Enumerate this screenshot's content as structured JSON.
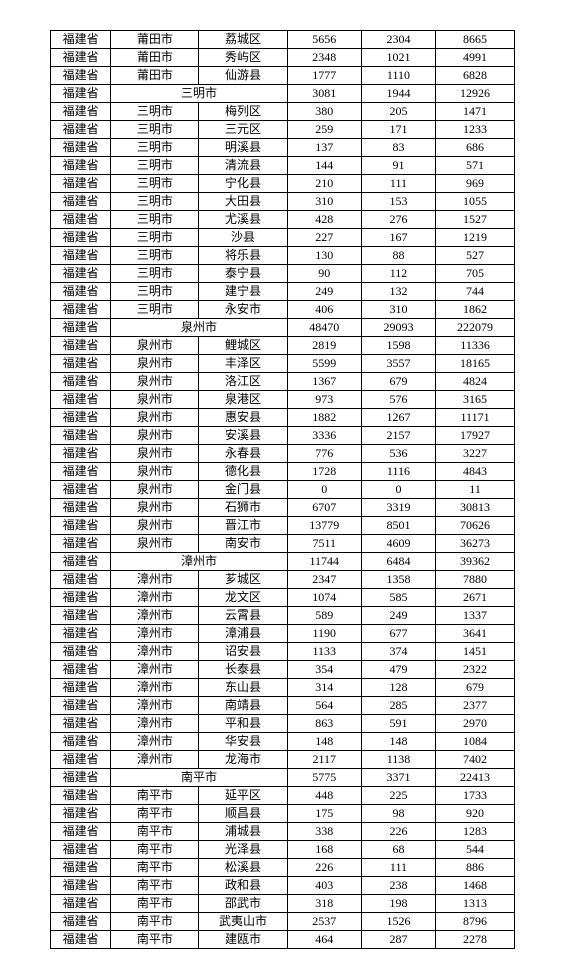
{
  "rows": [
    {
      "prov": "福建省",
      "city": "莆田市",
      "dist": "荔城区",
      "a": "5656",
      "b": "2304",
      "c": "8665"
    },
    {
      "prov": "福建省",
      "city": "莆田市",
      "dist": "秀屿区",
      "a": "2348",
      "b": "1021",
      "c": "4991"
    },
    {
      "prov": "福建省",
      "city": "莆田市",
      "dist": "仙游县",
      "a": "1777",
      "b": "1110",
      "c": "6828"
    },
    {
      "prov": "福建省",
      "subtotal": "三明市",
      "a": "3081",
      "b": "1944",
      "c": "12926"
    },
    {
      "prov": "福建省",
      "city": "三明市",
      "dist": "梅列区",
      "a": "380",
      "b": "205",
      "c": "1471"
    },
    {
      "prov": "福建省",
      "city": "三明市",
      "dist": "三元区",
      "a": "259",
      "b": "171",
      "c": "1233"
    },
    {
      "prov": "福建省",
      "city": "三明市",
      "dist": "明溪县",
      "a": "137",
      "b": "83",
      "c": "686"
    },
    {
      "prov": "福建省",
      "city": "三明市",
      "dist": "清流县",
      "a": "144",
      "b": "91",
      "c": "571"
    },
    {
      "prov": "福建省",
      "city": "三明市",
      "dist": "宁化县",
      "a": "210",
      "b": "111",
      "c": "969"
    },
    {
      "prov": "福建省",
      "city": "三明市",
      "dist": "大田县",
      "a": "310",
      "b": "153",
      "c": "1055"
    },
    {
      "prov": "福建省",
      "city": "三明市",
      "dist": "尤溪县",
      "a": "428",
      "b": "276",
      "c": "1527"
    },
    {
      "prov": "福建省",
      "city": "三明市",
      "dist": "沙县",
      "a": "227",
      "b": "167",
      "c": "1219"
    },
    {
      "prov": "福建省",
      "city": "三明市",
      "dist": "将乐县",
      "a": "130",
      "b": "88",
      "c": "527"
    },
    {
      "prov": "福建省",
      "city": "三明市",
      "dist": "泰宁县",
      "a": "90",
      "b": "112",
      "c": "705"
    },
    {
      "prov": "福建省",
      "city": "三明市",
      "dist": "建宁县",
      "a": "249",
      "b": "132",
      "c": "744"
    },
    {
      "prov": "福建省",
      "city": "三明市",
      "dist": "永安市",
      "a": "406",
      "b": "310",
      "c": "1862"
    },
    {
      "prov": "福建省",
      "subtotal": "泉州市",
      "a": "48470",
      "b": "29093",
      "c": "222079"
    },
    {
      "prov": "福建省",
      "city": "泉州市",
      "dist": "鲤城区",
      "a": "2819",
      "b": "1598",
      "c": "11336"
    },
    {
      "prov": "福建省",
      "city": "泉州市",
      "dist": "丰泽区",
      "a": "5599",
      "b": "3557",
      "c": "18165"
    },
    {
      "prov": "福建省",
      "city": "泉州市",
      "dist": "洛江区",
      "a": "1367",
      "b": "679",
      "c": "4824"
    },
    {
      "prov": "福建省",
      "city": "泉州市",
      "dist": "泉港区",
      "a": "973",
      "b": "576",
      "c": "3165"
    },
    {
      "prov": "福建省",
      "city": "泉州市",
      "dist": "惠安县",
      "a": "1882",
      "b": "1267",
      "c": "11171"
    },
    {
      "prov": "福建省",
      "city": "泉州市",
      "dist": "安溪县",
      "a": "3336",
      "b": "2157",
      "c": "17927"
    },
    {
      "prov": "福建省",
      "city": "泉州市",
      "dist": "永春县",
      "a": "776",
      "b": "536",
      "c": "3227"
    },
    {
      "prov": "福建省",
      "city": "泉州市",
      "dist": "德化县",
      "a": "1728",
      "b": "1116",
      "c": "4843"
    },
    {
      "prov": "福建省",
      "city": "泉州市",
      "dist": "金门县",
      "a": "0",
      "b": "0",
      "c": "11"
    },
    {
      "prov": "福建省",
      "city": "泉州市",
      "dist": "石狮市",
      "a": "6707",
      "b": "3319",
      "c": "30813"
    },
    {
      "prov": "福建省",
      "city": "泉州市",
      "dist": "晋江市",
      "a": "13779",
      "b": "8501",
      "c": "70626"
    },
    {
      "prov": "福建省",
      "city": "泉州市",
      "dist": "南安市",
      "a": "7511",
      "b": "4609",
      "c": "36273"
    },
    {
      "prov": "福建省",
      "subtotal": "漳州市",
      "a": "11744",
      "b": "6484",
      "c": "39362"
    },
    {
      "prov": "福建省",
      "city": "漳州市",
      "dist": "芗城区",
      "a": "2347",
      "b": "1358",
      "c": "7880"
    },
    {
      "prov": "福建省",
      "city": "漳州市",
      "dist": "龙文区",
      "a": "1074",
      "b": "585",
      "c": "2671"
    },
    {
      "prov": "福建省",
      "city": "漳州市",
      "dist": "云霄县",
      "a": "589",
      "b": "249",
      "c": "1337"
    },
    {
      "prov": "福建省",
      "city": "漳州市",
      "dist": "漳浦县",
      "a": "1190",
      "b": "677",
      "c": "3641"
    },
    {
      "prov": "福建省",
      "city": "漳州市",
      "dist": "诏安县",
      "a": "1133",
      "b": "374",
      "c": "1451"
    },
    {
      "prov": "福建省",
      "city": "漳州市",
      "dist": "长泰县",
      "a": "354",
      "b": "479",
      "c": "2322"
    },
    {
      "prov": "福建省",
      "city": "漳州市",
      "dist": "东山县",
      "a": "314",
      "b": "128",
      "c": "679"
    },
    {
      "prov": "福建省",
      "city": "漳州市",
      "dist": "南靖县",
      "a": "564",
      "b": "285",
      "c": "2377"
    },
    {
      "prov": "福建省",
      "city": "漳州市",
      "dist": "平和县",
      "a": "863",
      "b": "591",
      "c": "2970"
    },
    {
      "prov": "福建省",
      "city": "漳州市",
      "dist": "华安县",
      "a": "148",
      "b": "148",
      "c": "1084"
    },
    {
      "prov": "福建省",
      "city": "漳州市",
      "dist": "龙海市",
      "a": "2117",
      "b": "1138",
      "c": "7402"
    },
    {
      "prov": "福建省",
      "subtotal": "南平市",
      "a": "5775",
      "b": "3371",
      "c": "22413"
    },
    {
      "prov": "福建省",
      "city": "南平市",
      "dist": "延平区",
      "a": "448",
      "b": "225",
      "c": "1733"
    },
    {
      "prov": "福建省",
      "city": "南平市",
      "dist": "顺昌县",
      "a": "175",
      "b": "98",
      "c": "920"
    },
    {
      "prov": "福建省",
      "city": "南平市",
      "dist": "浦城县",
      "a": "338",
      "b": "226",
      "c": "1283"
    },
    {
      "prov": "福建省",
      "city": "南平市",
      "dist": "光泽县",
      "a": "168",
      "b": "68",
      "c": "544"
    },
    {
      "prov": "福建省",
      "city": "南平市",
      "dist": "松溪县",
      "a": "226",
      "b": "111",
      "c": "886"
    },
    {
      "prov": "福建省",
      "city": "南平市",
      "dist": "政和县",
      "a": "403",
      "b": "238",
      "c": "1468"
    },
    {
      "prov": "福建省",
      "city": "南平市",
      "dist": "邵武市",
      "a": "318",
      "b": "198",
      "c": "1313"
    },
    {
      "prov": "福建省",
      "city": "南平市",
      "dist": "武夷山市",
      "a": "2537",
      "b": "1526",
      "c": "8796"
    },
    {
      "prov": "福建省",
      "city": "南平市",
      "dist": "建瓯市",
      "a": "464",
      "b": "287",
      "c": "2278"
    }
  ]
}
